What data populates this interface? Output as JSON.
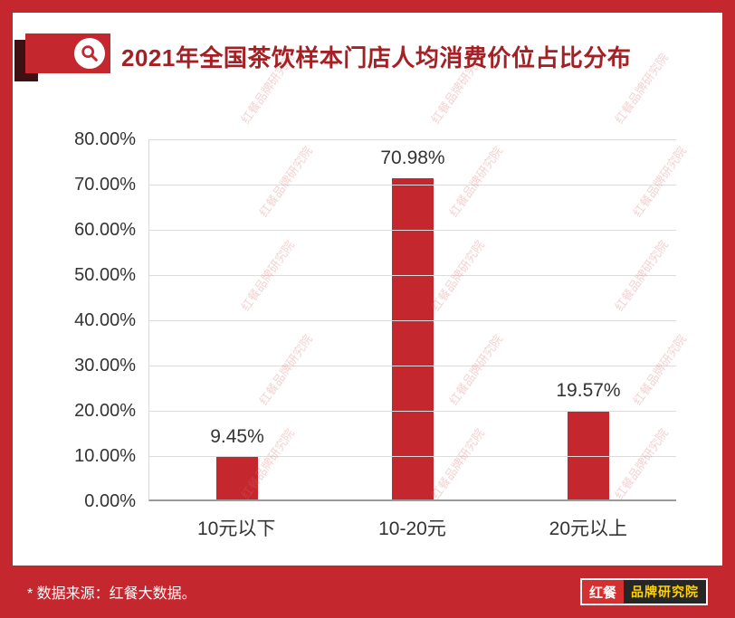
{
  "header": {
    "title": "2021年全国茶饮样本门店人均消费价位占比分布"
  },
  "chart_data": {
    "type": "bar",
    "title": "2021年全国茶饮样本门店人均消费价位占比分布",
    "categories": [
      "10元以下",
      "10-20元",
      "20元以上"
    ],
    "values": [
      9.45,
      70.98,
      19.57
    ],
    "value_labels": [
      "9.45%",
      "70.98%",
      "19.57%"
    ],
    "xlabel": "",
    "ylabel": "",
    "ylim": [
      0,
      80
    ],
    "ytick_labels": [
      "0.00%",
      "10.00%",
      "20.00%",
      "30.00%",
      "40.00%",
      "50.00%",
      "60.00%",
      "70.00%",
      "80.00%"
    ],
    "grid": true,
    "legend_position": "none",
    "bar_color": "#c4272e"
  },
  "watermark": {
    "text": "红餐品牌研究院"
  },
  "footer": {
    "source": "* 数据来源：红餐大数据。",
    "logo_primary": "红餐",
    "logo_secondary": "品牌研究院"
  },
  "colors": {
    "frame": "#c4272e",
    "bar": "#c4272e",
    "title": "#a42024",
    "logo_yellow": "#ffd200"
  }
}
